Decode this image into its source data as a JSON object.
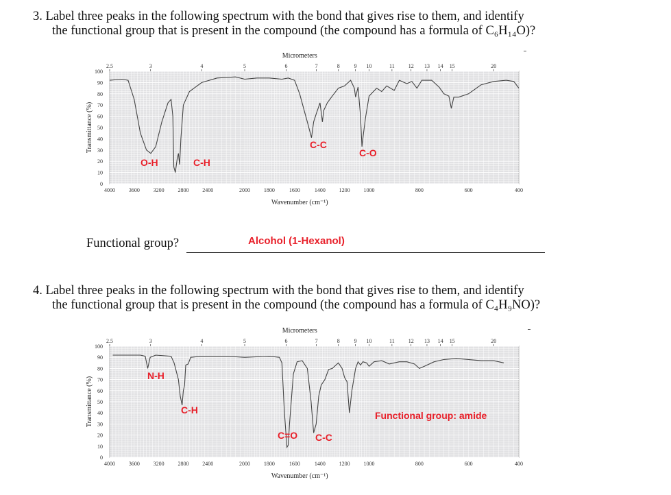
{
  "question3": {
    "line1": "3. Label three peaks in the following spectrum with the bond that gives rise to them, and identify",
    "line2": "the functional group that is present in the compound (the compound has a formula of C₆H₁₄O)?",
    "functional_group_label": "Functional group?",
    "answer": "Alcohol (1-Hexanol)"
  },
  "question4": {
    "line1": "4. Label three peaks in the following spectrum with the bond that gives rise to them, and identify",
    "line2": "the functional group that is present in the compound (the compound has a formula of C₄H₉NO)?"
  },
  "chart_data": [
    {
      "type": "line",
      "xlabel": "Wavenumber (cm⁻¹)",
      "ylabel": "Transmittance (%)",
      "top_axis_label": "Micrometers",
      "xlim": [
        4000,
        400
      ],
      "ylim": [
        0,
        100
      ],
      "grid": true,
      "x_ticks": [
        4000,
        3600,
        3200,
        2800,
        2400,
        2000,
        1800,
        1600,
        1400,
        1200,
        1000,
        800,
        600,
        400
      ],
      "y_ticks": [
        0,
        10,
        20,
        30,
        40,
        50,
        60,
        70,
        80,
        90,
        100
      ],
      "top_ticks": [
        "2.5",
        "3",
        "4",
        "5",
        "6",
        "7",
        "8",
        "9",
        "10",
        "11",
        "12",
        "13",
        "14",
        "15",
        "20"
      ],
      "annotations": [
        {
          "text": "O-H",
          "x": 3330,
          "y": 27
        },
        {
          "text": "C-H",
          "x": 2930,
          "y": 10
        },
        {
          "text": "C-C",
          "x": 1467,
          "y": 41
        },
        {
          "text": "C-O",
          "x": 1058,
          "y": 33
        }
      ],
      "series": [
        {
          "x": [
            4000,
            3800,
            3700,
            3600,
            3500,
            3400,
            3330,
            3250,
            3150,
            3050,
            3000,
            2970,
            2955,
            2930,
            2900,
            2880,
            2860,
            2840,
            2800,
            2700,
            2500,
            2300,
            2100,
            2000,
            1900,
            1800,
            1700,
            1650,
            1600,
            1560,
            1500,
            1467,
            1450,
            1430,
            1400,
            1380,
            1370,
            1340,
            1300,
            1250,
            1200,
            1150,
            1120,
            1110,
            1090,
            1070,
            1058,
            1045,
            1030,
            1000,
            970,
            950,
            930,
            900,
            880,
            850,
            830,
            810,
            790,
            750,
            720,
            700,
            680,
            670,
            660,
            640,
            600,
            550,
            500,
            450,
            420,
            400
          ],
          "y": [
            92,
            93,
            92,
            75,
            45,
            30,
            27,
            33,
            55,
            72,
            75,
            60,
            15,
            10,
            22,
            27,
            17,
            40,
            70,
            82,
            90,
            94,
            95,
            93,
            94,
            94,
            93,
            94,
            92,
            80,
            55,
            41,
            55,
            62,
            72,
            55,
            65,
            72,
            78,
            85,
            87,
            92,
            85,
            77,
            86,
            60,
            33,
            45,
            58,
            78,
            85,
            82,
            87,
            83,
            92,
            89,
            91,
            85,
            92,
            92,
            86,
            80,
            78,
            67,
            77,
            77,
            80,
            88,
            91,
            92,
            91,
            85
          ]
        }
      ]
    },
    {
      "type": "line",
      "xlabel": "Wavenumber (cm⁻¹)",
      "ylabel": "Transmittance (%)",
      "top_axis_label": "Micrometers",
      "xlim": [
        4000,
        400
      ],
      "ylim": [
        0,
        100
      ],
      "grid": true,
      "x_ticks": [
        4000,
        3600,
        3200,
        2800,
        2400,
        2000,
        1800,
        1600,
        1400,
        1200,
        1000,
        800,
        600,
        400
      ],
      "y_ticks": [
        0,
        10,
        20,
        30,
        40,
        50,
        60,
        70,
        80,
        90,
        100
      ],
      "top_ticks": [
        "2.5",
        "3",
        "4",
        "5",
        "6",
        "7",
        "8",
        "9",
        "10",
        "11",
        "12",
        "13",
        "14",
        "15",
        "20"
      ],
      "annotations": [
        {
          "text": "N-H",
          "x": 3380,
          "y": 80
        },
        {
          "text": "C-H",
          "x": 2820,
          "y": 47
        },
        {
          "text": "C=O",
          "x": 1660,
          "y": 9
        },
        {
          "text": "C-C",
          "x": 1450,
          "y": 22
        },
        {
          "text": "Functional group: amide",
          "x": 1000,
          "y": 35
        }
      ],
      "series": [
        {
          "x": [
            3950,
            3500,
            3420,
            3380,
            3340,
            3250,
            3000,
            2950,
            2880,
            2850,
            2820,
            2800,
            2780,
            2760,
            2720,
            2680,
            2500,
            2200,
            2000,
            1800,
            1720,
            1700,
            1680,
            1660,
            1650,
            1640,
            1610,
            1580,
            1540,
            1500,
            1470,
            1450,
            1430,
            1410,
            1390,
            1360,
            1330,
            1300,
            1270,
            1250,
            1220,
            1200,
            1180,
            1160,
            1140,
            1110,
            1090,
            1070,
            1050,
            1020,
            1000,
            980,
            950,
            920,
            880,
            850,
            820,
            800,
            780,
            740,
            700,
            650,
            600,
            550,
            500,
            460
          ],
          "y": [
            92,
            92,
            91,
            80,
            90,
            92,
            91,
            85,
            70,
            55,
            47,
            60,
            65,
            83,
            84,
            90,
            91,
            91,
            90,
            91,
            90,
            85,
            40,
            9,
            11,
            30,
            75,
            86,
            87,
            80,
            50,
            22,
            30,
            55,
            65,
            70,
            79,
            80,
            83,
            85,
            80,
            72,
            68,
            40,
            60,
            80,
            86,
            83,
            86,
            85,
            82,
            86,
            87,
            84,
            86,
            86,
            84,
            80,
            82,
            86,
            88,
            89,
            88,
            87,
            87,
            85
          ]
        }
      ]
    }
  ]
}
